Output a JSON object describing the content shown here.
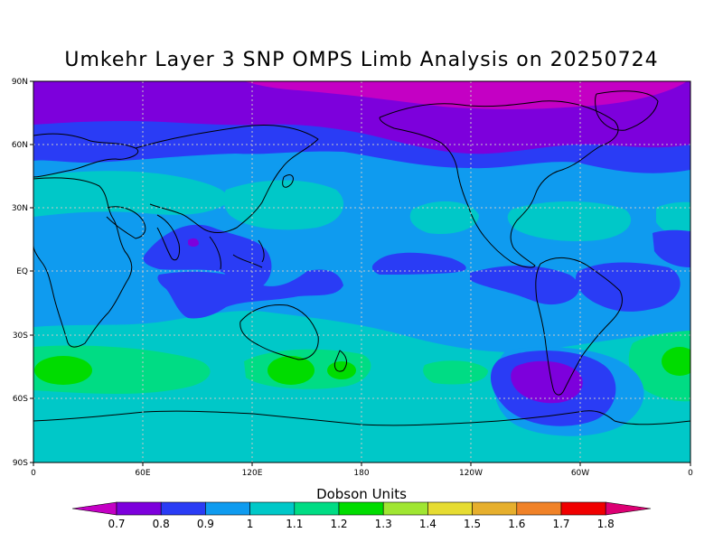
{
  "title": "Umkehr Layer 3 SNP OMPS Limb Analysis on 20250724",
  "lat_labels": [
    "90N",
    "60N",
    "30N",
    "EQ",
    "30S",
    "60S",
    "90S"
  ],
  "lon_labels": [
    "0",
    "60E",
    "120E",
    "180",
    "120W",
    "60W",
    "0"
  ],
  "colorbar": {
    "title": "Dobson Units",
    "ticks": [
      "0.7",
      "0.8",
      "0.9",
      "1",
      "1.1",
      "1.2",
      "1.3",
      "1.4",
      "1.5",
      "1.6",
      "1.7",
      "1.8"
    ],
    "colors": [
      "#c400c4",
      "#7d00dc",
      "#2a3cf5",
      "#0f9bef",
      "#00c8c8",
      "#00dc84",
      "#00dc00",
      "#a0e632",
      "#e6dc32",
      "#e6af2d",
      "#f08228",
      "#f00000",
      "#dc0073"
    ]
  }
}
